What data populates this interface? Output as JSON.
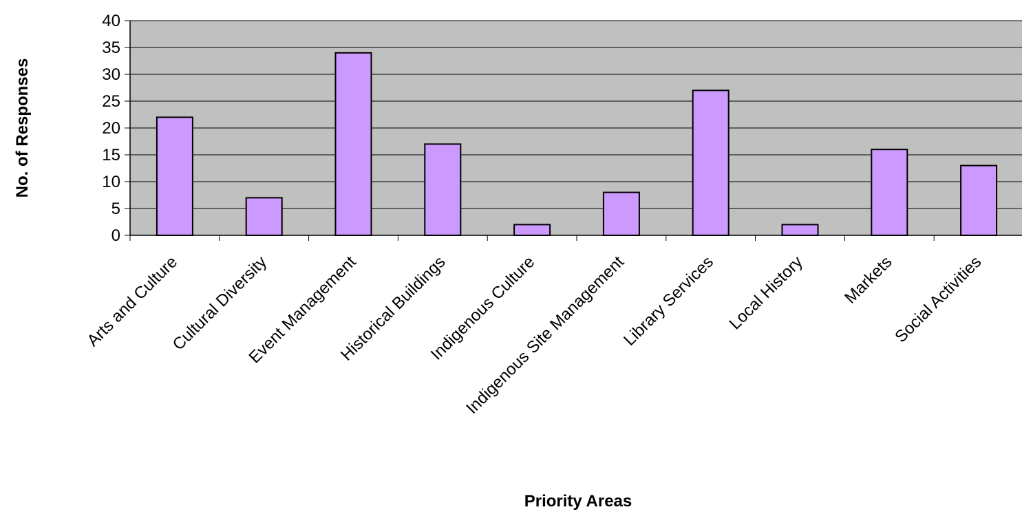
{
  "chart_data": {
    "type": "bar",
    "title": "",
    "xlabel": "Priority Areas",
    "ylabel": "No. of Responses",
    "categories": [
      "Arts and Culture",
      "Cultural Diversity",
      "Event Management",
      "Historical Buildings",
      "Indigenous Culture",
      "Indigenous Site Management",
      "Library Services",
      "Local History",
      "Markets",
      "Social Activities"
    ],
    "values": [
      22,
      7,
      34,
      17,
      2,
      8,
      27,
      2,
      16,
      13
    ],
    "ylim": [
      0,
      40
    ],
    "yticks": [
      "0",
      "5",
      "10",
      "15",
      "20",
      "25",
      "30",
      "35",
      "40"
    ],
    "grid": true,
    "legend": "none",
    "colors": {
      "bar_fill": "#cc99ff",
      "bar_stroke": "#000000",
      "plot_background": "#c0c0c0",
      "gridline": "#000000"
    }
  }
}
